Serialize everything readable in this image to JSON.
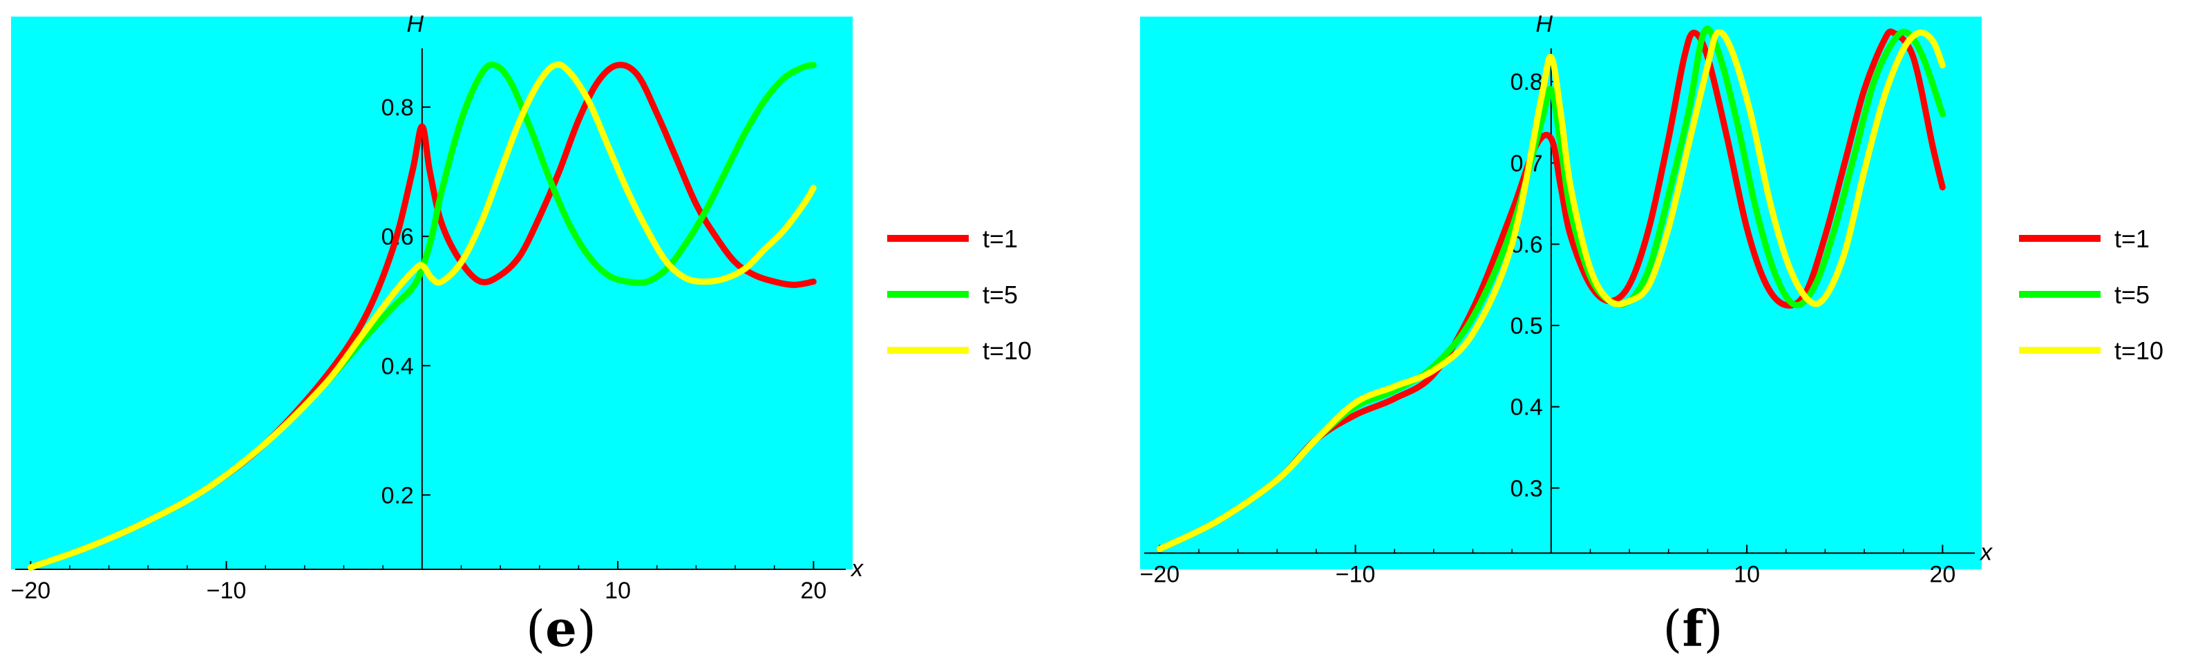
{
  "colors": {
    "background": "#00ffff",
    "axis": "#000000",
    "series": [
      "#ff0000",
      "#00ff00",
      "#ffff00"
    ]
  },
  "chart_data": [
    {
      "type": "line",
      "panel_label": "(e)",
      "panel_letter": "e",
      "xlabel": "x",
      "ylabel": "H",
      "xlim": [
        -21,
        22
      ],
      "ylim": [
        0.085,
        0.94
      ],
      "x_origin_value": 0,
      "y_axis_crossing": 0.085,
      "xticks": [
        -20,
        -10,
        10,
        20
      ],
      "xtick_labels": [
        "−20",
        "−10",
        "10",
        "20"
      ],
      "yticks": [
        0.2,
        0.4,
        0.6,
        0.8
      ],
      "ytick_labels": [
        "0.2",
        "0.4",
        "0.6",
        "0.8"
      ],
      "legend_position": "right",
      "series": [
        {
          "name": "t=1",
          "color": "#ff0000",
          "points": [
            [
              -20,
              0.088
            ],
            [
              -17,
              0.12
            ],
            [
              -14,
              0.16
            ],
            [
              -11,
              0.21
            ],
            [
              -8,
              0.28
            ],
            [
              -5,
              0.38
            ],
            [
              -3,
              0.47
            ],
            [
              -1.5,
              0.58
            ],
            [
              -0.5,
              0.7
            ],
            [
              0,
              0.77
            ],
            [
              0.4,
              0.7
            ],
            [
              1,
              0.62
            ],
            [
              2,
              0.56
            ],
            [
              3,
              0.53
            ],
            [
              4,
              0.54
            ],
            [
              5,
              0.57
            ],
            [
              6,
              0.63
            ],
            [
              7,
              0.7
            ],
            [
              8,
              0.78
            ],
            [
              9,
              0.84
            ],
            [
              10,
              0.865
            ],
            [
              11,
              0.85
            ],
            [
              12,
              0.79
            ],
            [
              13,
              0.72
            ],
            [
              14,
              0.65
            ],
            [
              15,
              0.6
            ],
            [
              16,
              0.56
            ],
            [
              17,
              0.54
            ],
            [
              18,
              0.53
            ],
            [
              19,
              0.525
            ],
            [
              20,
              0.53
            ]
          ]
        },
        {
          "name": "t=5",
          "color": "#00ff00",
          "points": [
            [
              -20,
              0.088
            ],
            [
              -17,
              0.12
            ],
            [
              -14,
              0.16
            ],
            [
              -11,
              0.21
            ],
            [
              -8,
              0.28
            ],
            [
              -5,
              0.37
            ],
            [
              -3,
              0.44
            ],
            [
              -1.5,
              0.49
            ],
            [
              -0.5,
              0.52
            ],
            [
              0,
              0.55
            ],
            [
              0.5,
              0.6
            ],
            [
              1,
              0.67
            ],
            [
              2,
              0.78
            ],
            [
              3,
              0.85
            ],
            [
              3.7,
              0.865
            ],
            [
              4.5,
              0.84
            ],
            [
              5.5,
              0.77
            ],
            [
              6.5,
              0.69
            ],
            [
              7.5,
              0.62
            ],
            [
              8.5,
              0.57
            ],
            [
              9.5,
              0.54
            ],
            [
              10.5,
              0.53
            ],
            [
              11.5,
              0.53
            ],
            [
              12.5,
              0.55
            ],
            [
              13.5,
              0.59
            ],
            [
              14.5,
              0.64
            ],
            [
              15.5,
              0.7
            ],
            [
              16.5,
              0.76
            ],
            [
              17.5,
              0.81
            ],
            [
              18.5,
              0.845
            ],
            [
              19.5,
              0.862
            ],
            [
              20,
              0.865
            ]
          ]
        },
        {
          "name": "t=10",
          "color": "#ffff00",
          "points": [
            [
              -20,
              0.088
            ],
            [
              -17,
              0.12
            ],
            [
              -14,
              0.16
            ],
            [
              -11,
              0.21
            ],
            [
              -8,
              0.28
            ],
            [
              -5,
              0.37
            ],
            [
              -3,
              0.45
            ],
            [
              -1.5,
              0.51
            ],
            [
              -0.5,
              0.545
            ],
            [
              0,
              0.555
            ],
            [
              0.5,
              0.535
            ],
            [
              1,
              0.53
            ],
            [
              2,
              0.56
            ],
            [
              3,
              0.62
            ],
            [
              4,
              0.7
            ],
            [
              5,
              0.78
            ],
            [
              6,
              0.84
            ],
            [
              6.8,
              0.865
            ],
            [
              7.5,
              0.855
            ],
            [
              8.5,
              0.81
            ],
            [
              9.5,
              0.74
            ],
            [
              10.5,
              0.67
            ],
            [
              11.5,
              0.61
            ],
            [
              12.5,
              0.56
            ],
            [
              13.5,
              0.535
            ],
            [
              14.5,
              0.53
            ],
            [
              15.5,
              0.535
            ],
            [
              16.5,
              0.55
            ],
            [
              17.5,
              0.58
            ],
            [
              18.5,
              0.61
            ],
            [
              19.5,
              0.65
            ],
            [
              20,
              0.675
            ]
          ]
        }
      ]
    },
    {
      "type": "line",
      "panel_label": "(f)",
      "panel_letter": "f",
      "xlabel": "x",
      "ylabel": "H",
      "xlim": [
        -21,
        22
      ],
      "ylim": [
        0.2,
        0.88
      ],
      "x_origin_value": 0,
      "y_axis_crossing": 0.22,
      "xticks": [
        -20,
        -10,
        10,
        20
      ],
      "xtick_labels": [
        "−20",
        "−10",
        "10",
        "20"
      ],
      "yticks": [
        0.3,
        0.4,
        0.5,
        0.6,
        0.7,
        0.8
      ],
      "ytick_labels": [
        "0.3",
        "0.4",
        "0.5",
        "0.6",
        "0.7",
        "0.8"
      ],
      "legend_position": "right",
      "series": [
        {
          "name": "t=1",
          "color": "#ff0000",
          "points": [
            [
              -20,
              0.225
            ],
            [
              -17,
              0.26
            ],
            [
              -14,
              0.31
            ],
            [
              -12,
              0.36
            ],
            [
              -10,
              0.39
            ],
            [
              -8,
              0.41
            ],
            [
              -6,
              0.44
            ],
            [
              -4,
              0.52
            ],
            [
              -2,
              0.64
            ],
            [
              -0.8,
              0.72
            ],
            [
              0,
              0.73
            ],
            [
              0.5,
              0.67
            ],
            [
              1,
              0.61
            ],
            [
              2,
              0.55
            ],
            [
              3,
              0.53
            ],
            [
              4,
              0.55
            ],
            [
              5,
              0.62
            ],
            [
              6,
              0.73
            ],
            [
              6.8,
              0.83
            ],
            [
              7.3,
              0.86
            ],
            [
              8,
              0.83
            ],
            [
              9,
              0.73
            ],
            [
              10,
              0.62
            ],
            [
              11,
              0.55
            ],
            [
              12,
              0.525
            ],
            [
              13,
              0.54
            ],
            [
              14,
              0.61
            ],
            [
              15,
              0.7
            ],
            [
              16,
              0.79
            ],
            [
              17,
              0.85
            ],
            [
              17.5,
              0.86
            ],
            [
              18.5,
              0.83
            ],
            [
              19.5,
              0.72
            ],
            [
              20,
              0.67
            ]
          ]
        },
        {
          "name": "t=5",
          "color": "#00ff00",
          "points": [
            [
              -20,
              0.225
            ],
            [
              -17,
              0.26
            ],
            [
              -14,
              0.31
            ],
            [
              -12,
              0.36
            ],
            [
              -10,
              0.4
            ],
            [
              -8,
              0.42
            ],
            [
              -6,
              0.45
            ],
            [
              -4,
              0.51
            ],
            [
              -2,
              0.62
            ],
            [
              -0.5,
              0.75
            ],
            [
              0,
              0.79
            ],
            [
              0.5,
              0.72
            ],
            [
              1,
              0.64
            ],
            [
              2,
              0.56
            ],
            [
              3,
              0.53
            ],
            [
              4,
              0.53
            ],
            [
              5,
              0.57
            ],
            [
              6,
              0.66
            ],
            [
              7,
              0.76
            ],
            [
              7.8,
              0.86
            ],
            [
              8.5,
              0.84
            ],
            [
              9.5,
              0.75
            ],
            [
              10.5,
              0.64
            ],
            [
              11.5,
              0.56
            ],
            [
              12.5,
              0.525
            ],
            [
              13.5,
              0.55
            ],
            [
              14.5,
              0.62
            ],
            [
              15.5,
              0.71
            ],
            [
              16.5,
              0.8
            ],
            [
              17.5,
              0.85
            ],
            [
              18.2,
              0.86
            ],
            [
              19,
              0.83
            ],
            [
              20,
              0.76
            ]
          ]
        },
        {
          "name": "t=10",
          "color": "#ffff00",
          "points": [
            [
              -20,
              0.225
            ],
            [
              -17,
              0.26
            ],
            [
              -14,
              0.31
            ],
            [
              -12,
              0.36
            ],
            [
              -10,
              0.405
            ],
            [
              -8,
              0.425
            ],
            [
              -6,
              0.445
            ],
            [
              -4,
              0.49
            ],
            [
              -2,
              0.6
            ],
            [
              -0.5,
              0.78
            ],
            [
              0,
              0.83
            ],
            [
              0.5,
              0.76
            ],
            [
              1,
              0.67
            ],
            [
              2,
              0.57
            ],
            [
              3,
              0.53
            ],
            [
              4,
              0.53
            ],
            [
              5,
              0.55
            ],
            [
              6,
              0.62
            ],
            [
              7,
              0.72
            ],
            [
              8,
              0.82
            ],
            [
              8.5,
              0.86
            ],
            [
              9.2,
              0.84
            ],
            [
              10.2,
              0.76
            ],
            [
              11.2,
              0.65
            ],
            [
              12.2,
              0.57
            ],
            [
              13.2,
              0.53
            ],
            [
              14,
              0.535
            ],
            [
              15,
              0.59
            ],
            [
              16,
              0.69
            ],
            [
              17,
              0.78
            ],
            [
              18,
              0.84
            ],
            [
              18.8,
              0.86
            ],
            [
              19.5,
              0.85
            ],
            [
              20,
              0.82
            ]
          ]
        }
      ]
    }
  ]
}
